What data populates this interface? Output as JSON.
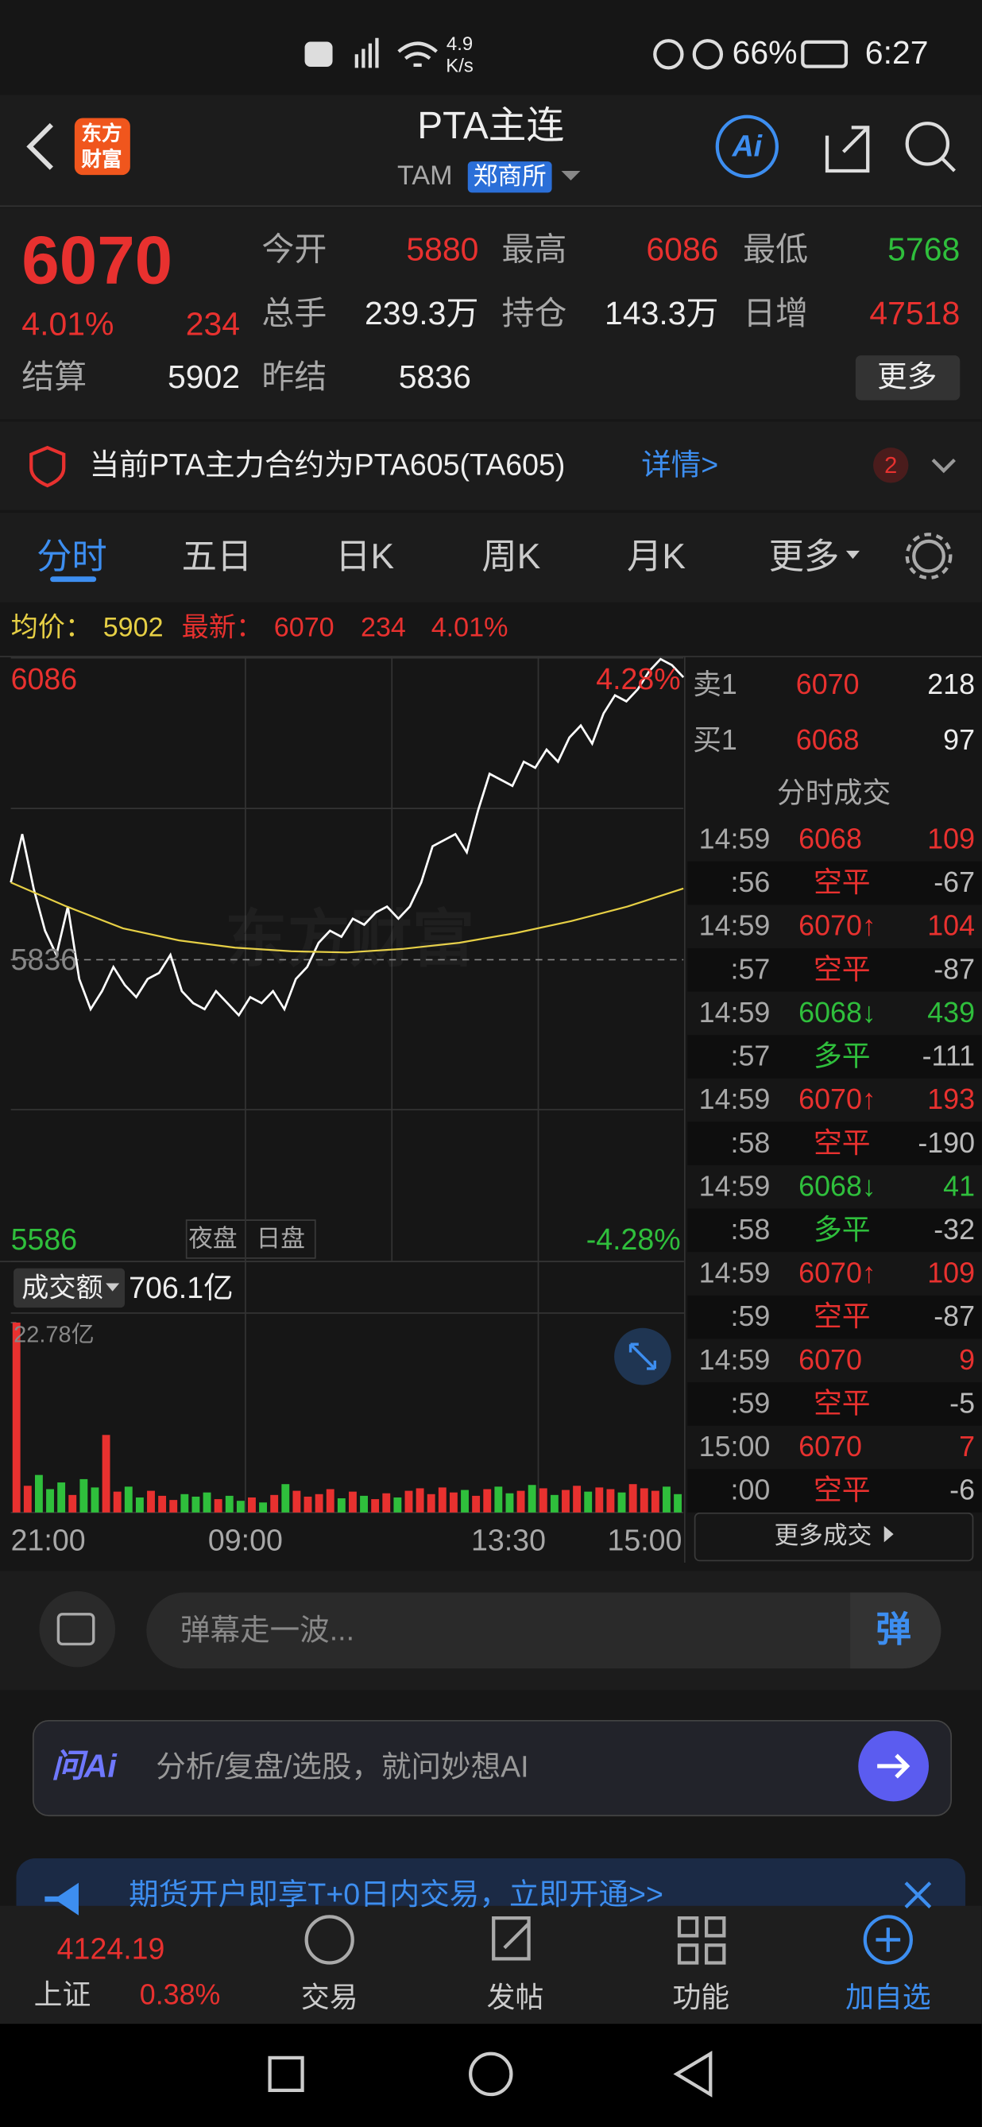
{
  "status": {
    "speed": "4.9",
    "speed_unit": "K/s",
    "battery": "66%",
    "time": "6:27"
  },
  "header": {
    "logo": [
      "东方",
      "财富"
    ],
    "title": "PTA主连",
    "code": "TAM",
    "exchange": "郑商所",
    "ai": "Ai"
  },
  "quote": {
    "price": "6070",
    "change_pct": "4.01%",
    "change": "234",
    "fields": [
      {
        "label": "今开",
        "value": "5880"
      },
      {
        "label": "最高",
        "value": "6086"
      },
      {
        "label": "最低",
        "value": "5768"
      },
      {
        "label": "总手",
        "value": "239.3万"
      },
      {
        "label": "持仓",
        "value": "143.3万"
      },
      {
        "label": "日增",
        "value": "47518"
      },
      {
        "label": "结算",
        "value": "5902"
      },
      {
        "label": "昨结",
        "value": "5836"
      }
    ],
    "more": "更多"
  },
  "notice": {
    "text": "当前PTA主力合约为PTA605(TA605)",
    "link": "详情>",
    "badge": "2"
  },
  "tabs": [
    "分时",
    "五日",
    "日K",
    "周K",
    "月K",
    "更多"
  ],
  "info": {
    "avg_label": "均价：",
    "avg": "5902",
    "last_label": "最新：",
    "last": "6070",
    "change": "234",
    "change_pct": "4.01%"
  },
  "chart_data": {
    "type": "line",
    "ylim": [
      5586,
      6086
    ],
    "yticks": [
      6086,
      5836,
      5586
    ],
    "pct_labels": [
      "4.28%",
      "-4.28%"
    ],
    "sessions": [
      "夜盘",
      "日盘"
    ],
    "watermark": "东方财富",
    "xticks": [
      "21:00",
      "09:00",
      "13:30",
      "15:00"
    ],
    "series": [
      {
        "color": "#ffffff",
        "values": [
          5900,
          5940,
          5895,
          5860,
          5840,
          5880,
          5820,
          5795,
          5810,
          5830,
          5815,
          5805,
          5820,
          5825,
          5840,
          5810,
          5800,
          5795,
          5810,
          5800,
          5790,
          5805,
          5800,
          5810,
          5795,
          5820,
          5830,
          5850,
          5860,
          5855,
          5870,
          5865,
          5875,
          5880,
          5870,
          5880,
          5900,
          5930,
          5935,
          5940,
          5925,
          5960,
          5990,
          5985,
          5980,
          6000,
          5995,
          6010,
          6000,
          6020,
          6030,
          6015,
          6040,
          6055,
          6050,
          6060,
          6075,
          6085,
          6080,
          6070
        ]
      },
      {
        "color": "#e6cf45",
        "values": [
          5900,
          5880,
          5862,
          5852,
          5846,
          5843,
          5842,
          5845,
          5850,
          5858,
          5868,
          5880,
          5895
        ]
      }
    ],
    "volume": {
      "label": "成交额",
      "total": "706.1亿",
      "ylim": [
        0,
        22.78
      ],
      "yticks": [
        {
          "value": 22.78,
          "label": "22.78亿"
        }
      ],
      "up_color": "#e8312f",
      "down_color": "#2fbf3c",
      "values": [
        22.78,
        3.2,
        4.5,
        2.8,
        3.6,
        2.1,
        4.0,
        3.0,
        9.3,
        2.5,
        3.1,
        1.8,
        2.6,
        2.0,
        1.5,
        2.2,
        1.9,
        2.4,
        1.6,
        2.0,
        1.4,
        1.8,
        1.2,
        2.1,
        3.4,
        2.6,
        1.9,
        2.2,
        2.8,
        1.7,
        2.5,
        2.0,
        1.6,
        2.3,
        1.8,
        2.6,
        2.9,
        2.2,
        3.0,
        2.4,
        2.7,
        2.0,
        2.8,
        3.1,
        2.3,
        2.6,
        3.3,
        2.9,
        2.1,
        2.7,
        3.2,
        2.5,
        3.0,
        2.8,
        2.4,
        3.4,
        2.9,
        2.6,
        3.1,
        2.2
      ]
    }
  },
  "order_book": [
    {
      "side": "卖1",
      "price": "6070",
      "volume": "218"
    },
    {
      "side": "买1",
      "price": "6068",
      "volume": "97"
    }
  ],
  "trades": {
    "title": "分时成交",
    "rows": [
      [
        "14:59",
        "6068",
        "109"
      ],
      [
        ":56",
        "空平",
        "-67"
      ],
      [
        "14:59",
        "6070↑",
        "104"
      ],
      [
        ":57",
        "空平",
        "-87"
      ],
      [
        "14:59",
        "6068↓",
        "439"
      ],
      [
        ":57",
        "多平",
        "-111"
      ],
      [
        "14:59",
        "6070↑",
        "193"
      ],
      [
        ":58",
        "空平",
        "-190"
      ],
      [
        "14:59",
        "6068↓",
        "41"
      ],
      [
        ":58",
        "多平",
        "-32"
      ],
      [
        "14:59",
        "6070↑",
        "109"
      ],
      [
        ":59",
        "空平",
        "-87"
      ],
      [
        "14:59",
        "6070",
        "9"
      ],
      [
        ":59",
        "空平",
        "-5"
      ],
      [
        "15:00",
        "6070",
        "7"
      ],
      [
        ":00",
        "空平",
        "-6"
      ]
    ],
    "more": "更多成交"
  },
  "danmu": {
    "placeholder": "弹幕走一波...",
    "button": "弹"
  },
  "ai_bar": {
    "logo": "问Ai",
    "placeholder": "分析/复盘/选股，就问妙想AI"
  },
  "banner": "期货开户即享T+0日内交易，立即开通>>",
  "bottom_nav": {
    "index_value": "4124.19",
    "index_name": "上证",
    "index_pct": "0.38%",
    "items": [
      "交易",
      "发帖",
      "功能",
      "加自选"
    ]
  }
}
